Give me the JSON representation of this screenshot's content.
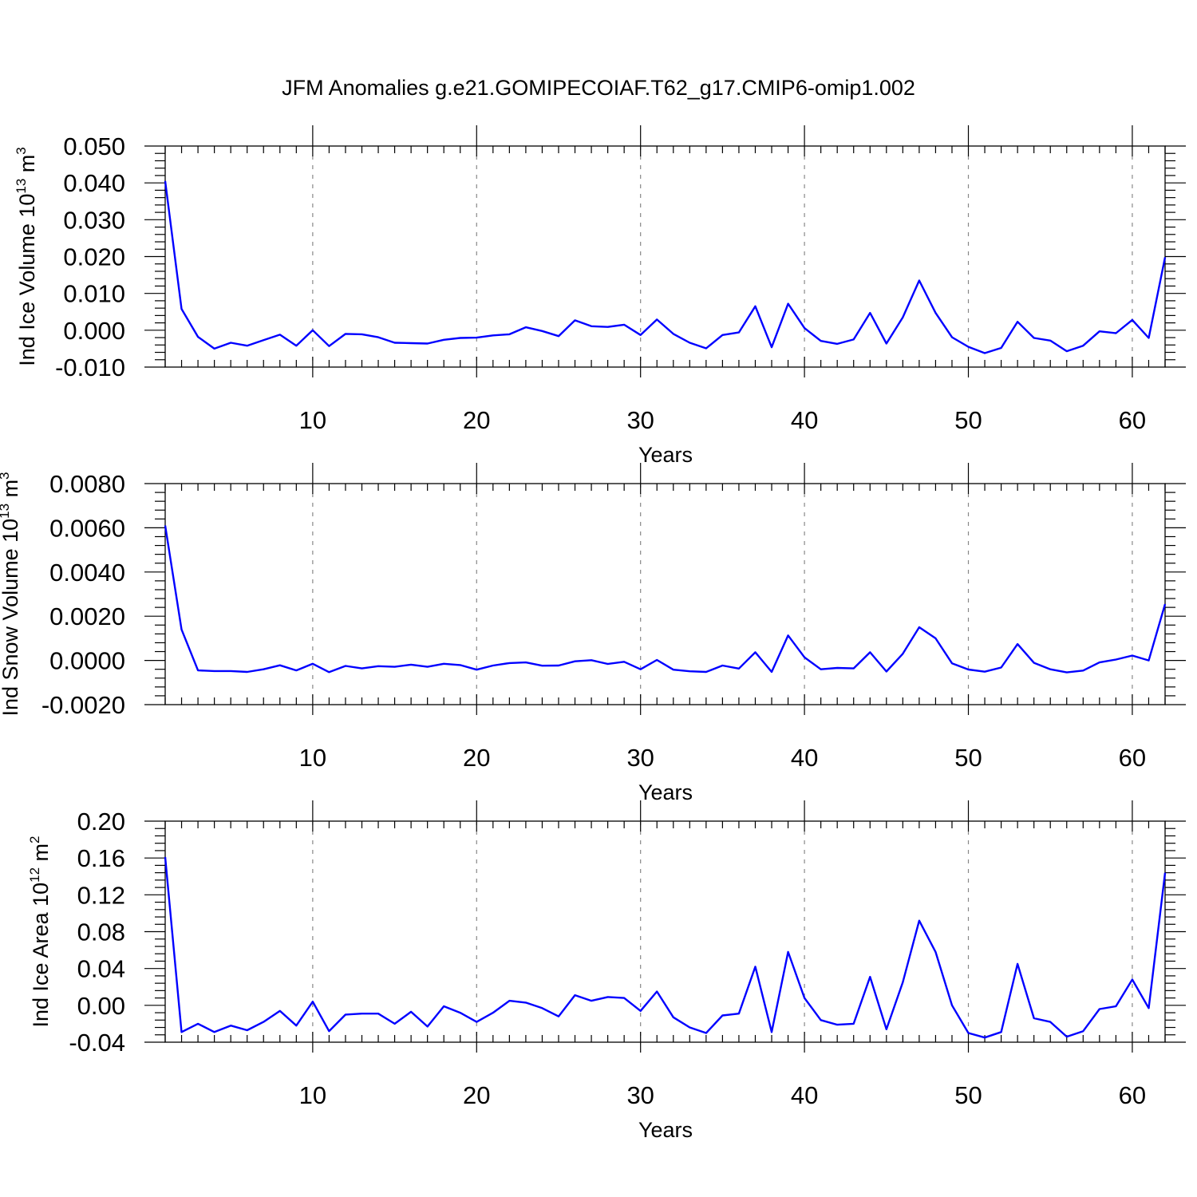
{
  "title": "JFM Anomalies g.e21.GOMIPECOIAF.T62_g17.CMIP6-omip1.002",
  "colors": {
    "line": "#0000ff",
    "grid": "#888888",
    "axis": "#000000"
  },
  "chart_data": [
    {
      "type": "line",
      "ylabel": {
        "main": "Ind Ice Volume 10",
        "exp": "13",
        "unit": " m",
        "unit_exp": "3"
      },
      "xlabel": "Years",
      "xlim": [
        1,
        62
      ],
      "ylim": [
        -0.01,
        0.05
      ],
      "xticks": [
        10,
        20,
        30,
        40,
        50,
        60
      ],
      "xtick_labels": [
        "10",
        "20",
        "30",
        "40",
        "50",
        "60"
      ],
      "yticks": [
        -0.01,
        0.0,
        0.01,
        0.02,
        0.03,
        0.04,
        0.05
      ],
      "ytick_labels": [
        "-0.010",
        "0.000",
        "0.010",
        "0.020",
        "0.030",
        "0.040",
        "0.050"
      ],
      "grid_x": true,
      "x_start": 1,
      "values": [
        0.0405,
        0.0058,
        -0.0018,
        -0.005,
        -0.0034,
        -0.0042,
        -0.0027,
        -0.0012,
        -0.0042,
        0.0,
        -0.0043,
        -0.001,
        -0.0011,
        -0.0019,
        -0.0034,
        -0.0035,
        -0.0036,
        -0.0026,
        -0.0021,
        -0.002,
        -0.0014,
        -0.0011,
        0.0008,
        -0.0002,
        -0.0016,
        0.0027,
        0.0011,
        0.0009,
        0.0015,
        -0.0013,
        0.0029,
        -0.001,
        -0.0034,
        -0.0049,
        -0.0013,
        -0.0006,
        0.0065,
        -0.0046,
        0.0072,
        0.0006,
        -0.0029,
        -0.0037,
        -0.0025,
        0.0047,
        -0.0036,
        0.0035,
        0.0135,
        0.0047,
        -0.0019,
        -0.0045,
        -0.0062,
        -0.0048,
        0.0023,
        -0.0021,
        -0.0028,
        -0.0057,
        -0.0042,
        -0.0003,
        -0.0008,
        0.0028,
        -0.0021,
        0.0198
      ]
    },
    {
      "type": "line",
      "ylabel": {
        "main": "Ind Snow Volume 10",
        "exp": "13",
        "unit": " m",
        "unit_exp": "3"
      },
      "xlabel": "Years",
      "xlim": [
        1,
        62
      ],
      "ylim": [
        -0.002,
        0.008
      ],
      "xticks": [
        10,
        20,
        30,
        40,
        50,
        60
      ],
      "xtick_labels": [
        "10",
        "20",
        "30",
        "40",
        "50",
        "60"
      ],
      "yticks": [
        -0.002,
        0.0,
        0.002,
        0.004,
        0.006,
        0.008
      ],
      "ytick_labels": [
        "-0.0020",
        "0.0000",
        "0.0020",
        "0.0040",
        "0.0060",
        "0.0080"
      ],
      "grid_x": true,
      "x_start": 1,
      "values": [
        0.0061,
        0.0014,
        -0.00045,
        -0.00048,
        -0.00048,
        -0.00052,
        -0.0004,
        -0.00022,
        -0.00045,
        -0.00015,
        -0.00053,
        -0.00025,
        -0.00036,
        -0.00026,
        -0.00029,
        -0.00019,
        -0.00029,
        -0.00015,
        -0.00021,
        -0.00042,
        -0.00023,
        -0.00012,
        -9e-05,
        -0.00024,
        -0.00023,
        -4e-05,
        1e-05,
        -0.00016,
        -6e-05,
        -0.0004,
        2e-05,
        -0.00042,
        -0.00049,
        -0.00052,
        -0.00023,
        -0.00037,
        0.00037,
        -0.00052,
        0.00113,
        0.00014,
        -0.0004,
        -0.00034,
        -0.00036,
        0.00037,
        -0.0005,
        0.0003,
        0.0015,
        0.001,
        -0.00013,
        -0.00041,
        -0.00051,
        -0.00032,
        0.00074,
        -0.00011,
        -0.0004,
        -0.00054,
        -0.00046,
        -9e-05,
        4e-05,
        0.00022,
        0.0,
        0.00255
      ]
    },
    {
      "type": "line",
      "ylabel": {
        "main": "Ind Ice Area 10",
        "exp": "12",
        "unit": " m",
        "unit_exp": "2"
      },
      "xlabel": "Years",
      "xlim": [
        1,
        62
      ],
      "ylim": [
        -0.04,
        0.2
      ],
      "xticks": [
        10,
        20,
        30,
        40,
        50,
        60
      ],
      "xtick_labels": [
        "10",
        "20",
        "30",
        "40",
        "50",
        "60"
      ],
      "yticks": [
        -0.04,
        0.0,
        0.04,
        0.08,
        0.12,
        0.16,
        0.2
      ],
      "ytick_labels": [
        "-0.04",
        "0.00",
        "0.04",
        "0.08",
        "0.12",
        "0.16",
        "0.20"
      ],
      "grid_x": true,
      "x_start": 1,
      "values": [
        0.161,
        -0.029,
        -0.02,
        -0.029,
        -0.022,
        -0.027,
        -0.018,
        -0.006,
        -0.022,
        0.004,
        -0.028,
        -0.01,
        -0.009,
        -0.009,
        -0.02,
        -0.007,
        -0.023,
        -0.001,
        -0.008,
        -0.018,
        -0.008,
        0.005,
        0.003,
        -0.003,
        -0.012,
        0.011,
        0.005,
        0.009,
        0.008,
        -0.006,
        0.015,
        -0.013,
        -0.024,
        -0.03,
        -0.011,
        -0.009,
        0.042,
        -0.029,
        0.058,
        0.008,
        -0.016,
        -0.021,
        -0.02,
        0.031,
        -0.026,
        0.025,
        0.092,
        0.058,
        0.0,
        -0.03,
        -0.035,
        -0.029,
        0.045,
        -0.014,
        -0.018,
        -0.034,
        -0.028,
        -0.004,
        -0.001,
        0.028,
        -0.003,
        0.144
      ]
    }
  ]
}
